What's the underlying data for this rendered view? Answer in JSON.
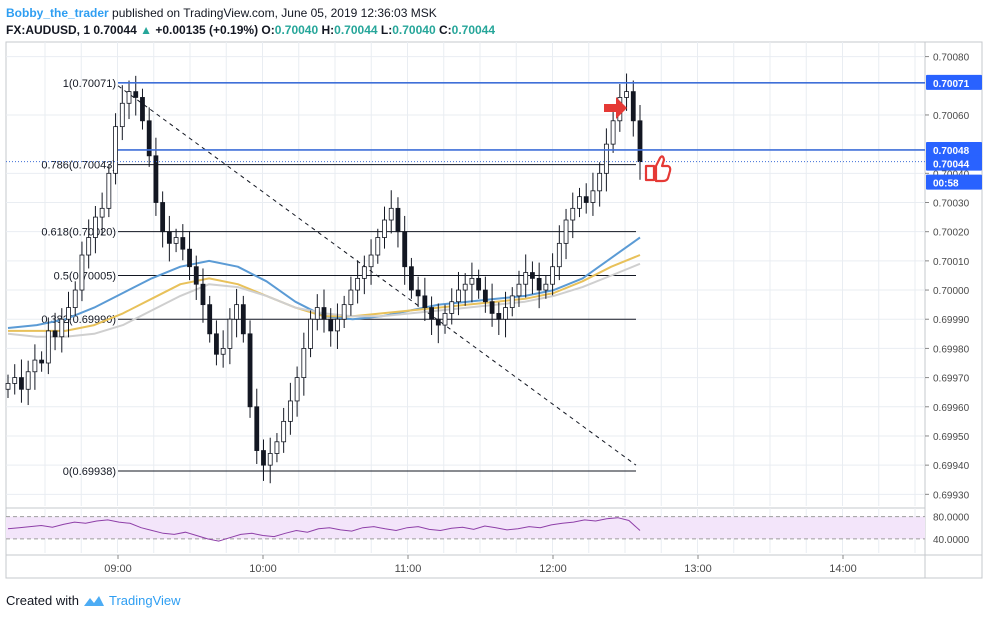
{
  "header": {
    "author": "Bobby_the_trader",
    "published": "published on TradingView.com, June 05, 2019 12:36:03 MSK",
    "symbol": "FX:AUDUSD, 1",
    "last": "0.70044",
    "change_arrow": "▲",
    "change": "+0.00135 (+0.19%)",
    "o_label": "O:",
    "o_value": "0.70040",
    "h_label": "H:",
    "h_value": "0.70044",
    "l_label": "L:",
    "l_value": "0.70040",
    "c_label": "C:",
    "c_value": "0.70044"
  },
  "footer": {
    "created_with": "Created with",
    "brand": "TradingView",
    "brand_icon": "tradingview-logo-icon"
  },
  "chart_data": {
    "type": "candlestick",
    "symbol": "FX:AUDUSD",
    "interval": "1",
    "ylim": [
      0.69926,
      0.70085
    ],
    "x_ticks": [
      "09:00",
      "10:00",
      "11:00",
      "12:00",
      "13:00",
      "14:00"
    ],
    "y_ticks": [
      "0.70080",
      "0.70060",
      "0.70040",
      "0.70030",
      "0.70020",
      "0.70010",
      "0.70000",
      "0.69990",
      "0.69980",
      "0.69970",
      "0.69960",
      "0.69950",
      "0.69940",
      "0.69930"
    ],
    "price_labels": [
      {
        "value": "0.70071",
        "color": "#2962ff"
      },
      {
        "value": "0.70048",
        "color": "#2962ff"
      },
      {
        "value": "0.70044",
        "color": "#2962ff"
      },
      {
        "value": "00:58",
        "color": "#2962ff"
      }
    ],
    "horizontal_lines": [
      0.70071,
      0.70048
    ],
    "fib_levels": [
      {
        "label": "1(0.70071)",
        "value": 0.70071
      },
      {
        "label": "0.786(0.70043)",
        "value": 0.70043
      },
      {
        "label": "0.618(0.70020)",
        "value": 0.7002
      },
      {
        "label": "0.5(0.70005)",
        "value": 0.70005
      },
      {
        "label": "0.382(0.69990)",
        "value": 0.6999
      },
      {
        "label": "0(0.69938)",
        "value": 0.69938
      }
    ],
    "trend_line": {
      "from": {
        "time": "08:59",
        "price": 0.7007
      },
      "to": {
        "time": "12:34",
        "price": 0.6994
      }
    },
    "close_series": [
      0.69968,
      0.6997,
      0.69966,
      0.69972,
      0.69976,
      0.69975,
      0.69986,
      0.69984,
      0.6999,
      0.69994,
      0.7,
      0.70012,
      0.70018,
      0.70025,
      0.70028,
      0.7004,
      0.70056,
      0.70064,
      0.70068,
      0.70066,
      0.70058,
      0.70046,
      0.7003,
      0.7002,
      0.70016,
      0.70018,
      0.70014,
      0.70008,
      0.70002,
      0.69995,
      0.69985,
      0.69978,
      0.6998,
      0.6999,
      0.69995,
      0.69985,
      0.6996,
      0.69945,
      0.6994,
      0.69944,
      0.69948,
      0.69955,
      0.69962,
      0.6997,
      0.6998,
      0.6999,
      0.69994,
      0.6999,
      0.69986,
      0.6999,
      0.69995,
      0.7,
      0.70004,
      0.70008,
      0.70012,
      0.70018,
      0.70024,
      0.70028,
      0.7002,
      0.70008,
      0.7,
      0.69998,
      0.69994,
      0.6999,
      0.69988,
      0.69992,
      0.69996,
      0.7,
      0.70002,
      0.70004,
      0.7,
      0.69996,
      0.69992,
      0.6999,
      0.69994,
      0.69998,
      0.70002,
      0.70006,
      0.70004,
      0.7,
      0.70002,
      0.70008,
      0.70016,
      0.70024,
      0.70028,
      0.70032,
      0.7003,
      0.70034,
      0.7004,
      0.7005,
      0.70058,
      0.70066,
      0.70068,
      0.70058,
      0.70044
    ],
    "moving_averages": [
      {
        "color": "#5b9bd5",
        "values": [
          0.69987,
          0.69988,
          0.6999,
          0.69994,
          0.69999,
          0.70004,
          0.70008,
          0.7001,
          0.70008,
          0.70003,
          0.69996,
          0.69991,
          0.6999,
          0.69991,
          0.69993,
          0.69995,
          0.69996,
          0.69997,
          0.69998,
          0.7,
          0.70004,
          0.70011,
          0.70018
        ]
      },
      {
        "color": "#e8c15a",
        "values": [
          0.69986,
          0.69986,
          0.69986,
          0.69988,
          0.69992,
          0.69997,
          0.70002,
          0.70004,
          0.70002,
          0.69998,
          0.69994,
          0.69991,
          0.69991,
          0.69992,
          0.69993,
          0.69994,
          0.69995,
          0.69996,
          0.69997,
          0.69999,
          0.70003,
          0.70008,
          0.70012
        ]
      },
      {
        "color": "#cfcfcf",
        "values": [
          0.69985,
          0.69984,
          0.69984,
          0.69985,
          0.69988,
          0.69993,
          0.69998,
          0.70002,
          0.70001,
          0.69998,
          0.69994,
          0.69992,
          0.69991,
          0.69991,
          0.69992,
          0.69993,
          0.69994,
          0.69995,
          0.69996,
          0.69998,
          0.70001,
          0.70005,
          0.70009
        ]
      }
    ],
    "rsi": {
      "levels": [
        "80.0000",
        "40.0000"
      ],
      "values": [
        58,
        60,
        62,
        64,
        61,
        66,
        70,
        68,
        72,
        74,
        70,
        68,
        60,
        55,
        50,
        48,
        52,
        46,
        40,
        36,
        42,
        48,
        50,
        46,
        44,
        50,
        55,
        52,
        58,
        60,
        56,
        54,
        60,
        62,
        58,
        55,
        60,
        62,
        57,
        55,
        59,
        61,
        57,
        63,
        60,
        56,
        58,
        62,
        60,
        65,
        68,
        70,
        74,
        72,
        76,
        78,
        73,
        55
      ]
    },
    "annotations": [
      "red-arrow-icon",
      "thumbs-up-icon"
    ]
  }
}
